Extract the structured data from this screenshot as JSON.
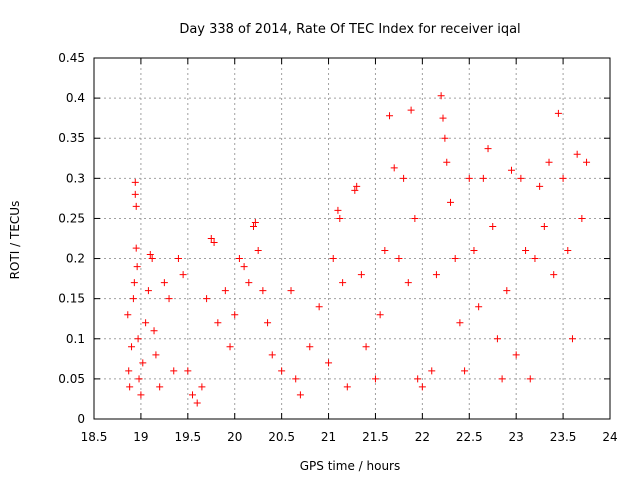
{
  "chart_data": {
    "type": "scatter",
    "title": "Day 338 of 2014, Rate Of TEC Index for receiver iqal",
    "xlabel": "GPS time / hours",
    "ylabel": "ROTI / TECUs",
    "xlim": [
      18.5,
      24
    ],
    "ylim": [
      0,
      0.45
    ],
    "xticks": [
      "18.5",
      "19",
      "19.5",
      "20",
      "20.5",
      "21",
      "21.5",
      "22",
      "22.5",
      "23",
      "23.5",
      "24"
    ],
    "yticks": [
      "0",
      "0.05",
      "0.1",
      "0.15",
      "0.2",
      "0.25",
      "0.3",
      "0.35",
      "0.4",
      "0.45"
    ],
    "grid": true,
    "marker": "+",
    "color": "#ff0000",
    "series": [
      {
        "name": "ROTI",
        "points": [
          [
            18.86,
            0.13
          ],
          [
            18.87,
            0.06
          ],
          [
            18.88,
            0.04
          ],
          [
            18.9,
            0.09
          ],
          [
            18.92,
            0.15
          ],
          [
            18.93,
            0.17
          ],
          [
            18.94,
            0.295
          ],
          [
            18.94,
            0.28
          ],
          [
            18.95,
            0.265
          ],
          [
            18.95,
            0.213
          ],
          [
            18.96,
            0.19
          ],
          [
            18.97,
            0.1
          ],
          [
            18.98,
            0.05
          ],
          [
            19.0,
            0.03
          ],
          [
            19.02,
            0.07
          ],
          [
            19.05,
            0.12
          ],
          [
            19.08,
            0.16
          ],
          [
            19.1,
            0.205
          ],
          [
            19.12,
            0.2
          ],
          [
            19.14,
            0.11
          ],
          [
            19.16,
            0.08
          ],
          [
            19.2,
            0.04
          ],
          [
            19.25,
            0.17
          ],
          [
            19.3,
            0.15
          ],
          [
            19.35,
            0.06
          ],
          [
            19.4,
            0.2
          ],
          [
            19.45,
            0.18
          ],
          [
            19.5,
            0.06
          ],
          [
            19.55,
            0.03
          ],
          [
            19.6,
            0.02
          ],
          [
            19.65,
            0.04
          ],
          [
            19.7,
            0.15
          ],
          [
            19.75,
            0.225
          ],
          [
            19.78,
            0.22
          ],
          [
            19.82,
            0.12
          ],
          [
            19.9,
            0.16
          ],
          [
            19.95,
            0.09
          ],
          [
            20.0,
            0.13
          ],
          [
            20.05,
            0.2
          ],
          [
            20.1,
            0.19
          ],
          [
            20.15,
            0.17
          ],
          [
            20.2,
            0.24
          ],
          [
            20.22,
            0.245
          ],
          [
            20.25,
            0.21
          ],
          [
            20.3,
            0.16
          ],
          [
            20.35,
            0.12
          ],
          [
            20.4,
            0.08
          ],
          [
            20.5,
            0.06
          ],
          [
            20.6,
            0.16
          ],
          [
            20.65,
            0.05
          ],
          [
            20.7,
            0.03
          ],
          [
            20.8,
            0.09
          ],
          [
            20.9,
            0.14
          ],
          [
            21.0,
            0.07
          ],
          [
            21.05,
            0.2
          ],
          [
            21.1,
            0.26
          ],
          [
            21.12,
            0.25
          ],
          [
            21.15,
            0.17
          ],
          [
            21.2,
            0.04
          ],
          [
            21.28,
            0.285
          ],
          [
            21.3,
            0.29
          ],
          [
            21.35,
            0.18
          ],
          [
            21.4,
            0.09
          ],
          [
            21.5,
            0.05
          ],
          [
            21.55,
            0.13
          ],
          [
            21.6,
            0.21
          ],
          [
            21.65,
            0.378
          ],
          [
            21.7,
            0.313
          ],
          [
            21.75,
            0.2
          ],
          [
            21.8,
            0.3
          ],
          [
            21.85,
            0.17
          ],
          [
            21.88,
            0.385
          ],
          [
            21.92,
            0.25
          ],
          [
            21.95,
            0.05
          ],
          [
            22.0,
            0.04
          ],
          [
            22.1,
            0.06
          ],
          [
            22.15,
            0.18
          ],
          [
            22.2,
            0.403
          ],
          [
            22.22,
            0.375
          ],
          [
            22.24,
            0.35
          ],
          [
            22.26,
            0.32
          ],
          [
            22.3,
            0.27
          ],
          [
            22.35,
            0.2
          ],
          [
            22.4,
            0.12
          ],
          [
            22.45,
            0.06
          ],
          [
            22.5,
            0.3
          ],
          [
            22.55,
            0.21
          ],
          [
            22.6,
            0.14
          ],
          [
            22.65,
            0.3
          ],
          [
            22.7,
            0.337
          ],
          [
            22.75,
            0.24
          ],
          [
            22.8,
            0.1
          ],
          [
            22.85,
            0.05
          ],
          [
            22.9,
            0.16
          ],
          [
            22.95,
            0.31
          ],
          [
            23.0,
            0.08
          ],
          [
            23.05,
            0.3
          ],
          [
            23.1,
            0.21
          ],
          [
            23.15,
            0.05
          ],
          [
            23.2,
            0.2
          ],
          [
            23.25,
            0.29
          ],
          [
            23.3,
            0.24
          ],
          [
            23.35,
            0.32
          ],
          [
            23.4,
            0.18
          ],
          [
            23.45,
            0.381
          ],
          [
            23.5,
            0.3
          ],
          [
            23.55,
            0.21
          ],
          [
            23.6,
            0.1
          ],
          [
            23.65,
            0.33
          ],
          [
            23.7,
            0.25
          ],
          [
            23.75,
            0.32
          ]
        ]
      }
    ]
  }
}
